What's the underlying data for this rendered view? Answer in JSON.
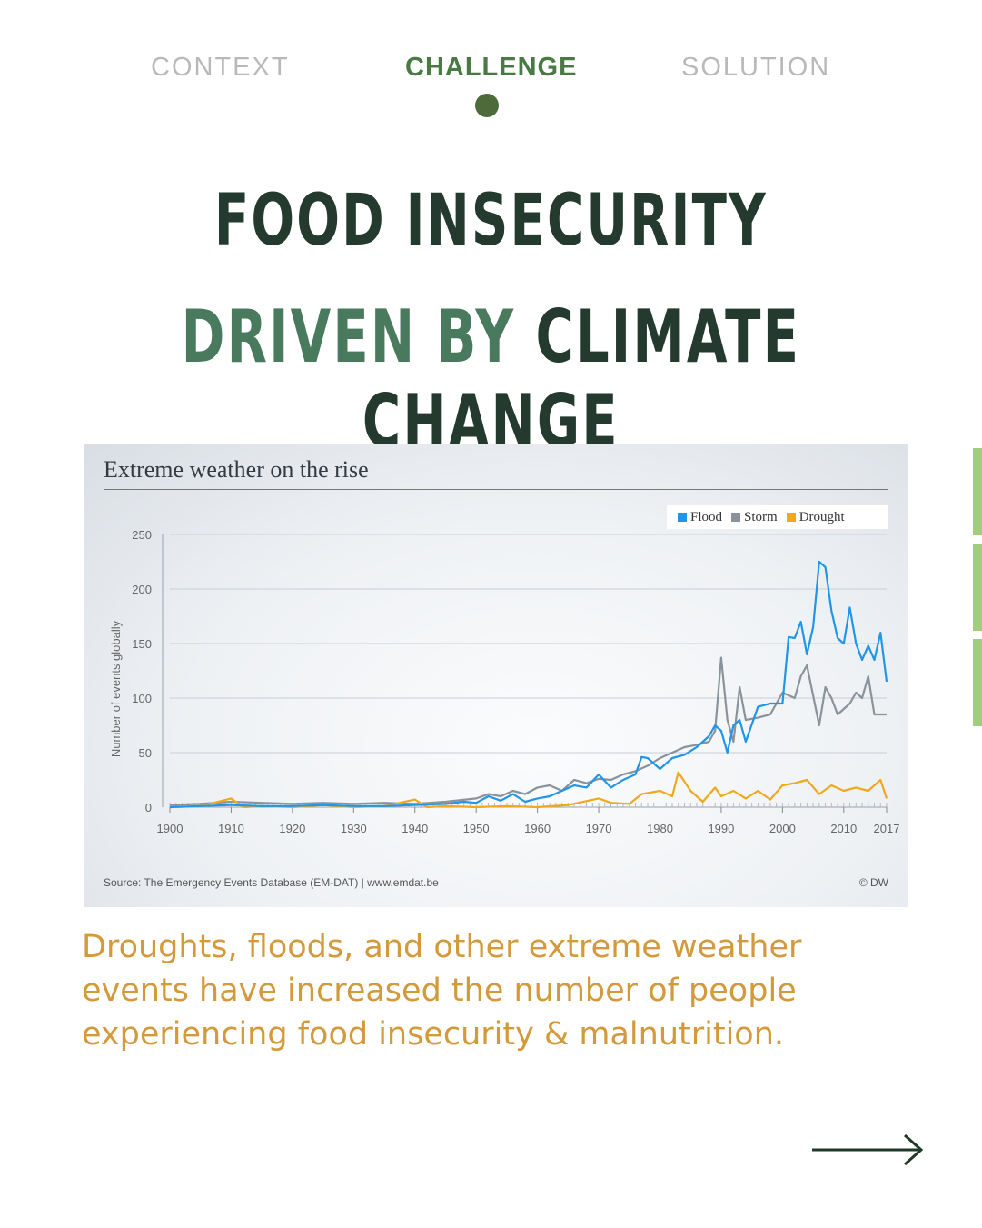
{
  "nav": {
    "tabs": [
      {
        "label": "CONTEXT",
        "active": false
      },
      {
        "label": "CHALLENGE",
        "active": true
      },
      {
        "label": "SOLUTION",
        "active": false
      }
    ]
  },
  "headline": {
    "line1": "FOOD INSECURITY",
    "line2_green": "DRIVEN BY",
    "line2_dark": "CLIMATE CHANGE"
  },
  "caption": "Droughts, floods, and other extreme weather events have increased the number of people experiencing food insecurity & malnutrition.",
  "colors": {
    "accent_green": "#4a7a44",
    "headline_dark": "#243a2e",
    "headline_green": "#4a7a5e",
    "caption_gold": "#d3993a",
    "flood": "#2196e8",
    "storm": "#8a939b",
    "drought": "#f0a81c"
  },
  "icons": {
    "next": "arrow-right-icon",
    "active": "dot-icon"
  },
  "chart_data": {
    "type": "line",
    "title": "Extreme weather on the rise",
    "xlabel": "",
    "ylabel": "Number of events globally",
    "xlim": [
      1900,
      2017
    ],
    "ylim": [
      0,
      250
    ],
    "x_ticks": [
      "1900",
      "1910",
      "1920",
      "1930",
      "1940",
      "1950",
      "1960",
      "1970",
      "1980",
      "1990",
      "2000",
      "2010",
      "2017"
    ],
    "x_tick_values": [
      1900,
      1910,
      1920,
      1930,
      1940,
      1950,
      1960,
      1970,
      1980,
      1990,
      2000,
      2010,
      2017
    ],
    "y_ticks": [
      "0",
      "50",
      "100",
      "150",
      "200",
      "250"
    ],
    "y_tick_values": [
      0,
      50,
      100,
      150,
      200,
      250
    ],
    "legend": "top-right",
    "source": "Source: The Emergency Events Database (EM-DAT) | www.emdat.be",
    "credit": "© DW",
    "series": [
      {
        "name": "Flood",
        "color": "#2196e8",
        "x": [
          1900,
          1905,
          1910,
          1915,
          1920,
          1925,
          1930,
          1935,
          1940,
          1945,
          1948,
          1950,
          1952,
          1954,
          1956,
          1958,
          1960,
          1962,
          1964,
          1966,
          1968,
          1970,
          1972,
          1974,
          1976,
          1977,
          1978,
          1980,
          1982,
          1984,
          1986,
          1988,
          1989,
          1990,
          1991,
          1992,
          1993,
          1994,
          1996,
          1998,
          2000,
          2001,
          2002,
          2003,
          2004,
          2005,
          2006,
          2007,
          2008,
          2009,
          2010,
          2011,
          2012,
          2013,
          2014,
          2015,
          2016,
          2017
        ],
        "y": [
          0,
          1,
          2,
          1,
          1,
          2,
          1,
          1,
          2,
          3,
          5,
          4,
          10,
          6,
          12,
          5,
          8,
          10,
          15,
          20,
          18,
          30,
          18,
          25,
          30,
          46,
          45,
          35,
          45,
          48,
          55,
          65,
          75,
          70,
          50,
          75,
          80,
          60,
          92,
          95,
          95,
          156,
          155,
          170,
          140,
          165,
          225,
          220,
          180,
          155,
          150,
          183,
          150,
          135,
          148,
          135,
          160,
          115
        ]
      },
      {
        "name": "Storm",
        "color": "#8a939b",
        "x": [
          1900,
          1905,
          1910,
          1915,
          1920,
          1925,
          1930,
          1935,
          1940,
          1945,
          1950,
          1952,
          1954,
          1956,
          1958,
          1960,
          1962,
          1964,
          1966,
          1968,
          1970,
          1972,
          1974,
          1976,
          1978,
          1980,
          1982,
          1984,
          1986,
          1988,
          1989,
          1990,
          1991,
          1992,
          1993,
          1994,
          1996,
          1998,
          2000,
          2002,
          2003,
          2004,
          2006,
          2007,
          2008,
          2009,
          2010,
          2011,
          2012,
          2013,
          2014,
          2015,
          2016,
          2017
        ],
        "y": [
          2,
          3,
          5,
          4,
          3,
          4,
          3,
          4,
          3,
          5,
          8,
          12,
          10,
          15,
          12,
          18,
          20,
          15,
          25,
          22,
          26,
          25,
          30,
          33,
          38,
          45,
          50,
          55,
          57,
          60,
          70,
          137,
          80,
          60,
          110,
          80,
          82,
          85,
          105,
          100,
          120,
          130,
          75,
          110,
          100,
          85,
          90,
          95,
          105,
          100,
          120,
          85,
          85,
          85
        ]
      },
      {
        "name": "Drought",
        "color": "#f0a81c",
        "x": [
          1900,
          1905,
          1910,
          1912,
          1915,
          1920,
          1925,
          1930,
          1935,
          1940,
          1942,
          1945,
          1950,
          1955,
          1960,
          1965,
          1970,
          1972,
          1975,
          1977,
          1980,
          1982,
          1983,
          1985,
          1987,
          1989,
          1990,
          1992,
          1994,
          1996,
          1998,
          2000,
          2002,
          2004,
          2006,
          2008,
          2010,
          2012,
          2014,
          2016,
          2017
        ],
        "y": [
          0,
          1,
          8,
          0,
          1,
          0,
          2,
          0,
          1,
          7,
          0,
          1,
          0,
          1,
          0,
          2,
          8,
          4,
          3,
          12,
          15,
          10,
          32,
          15,
          5,
          18,
          10,
          15,
          8,
          15,
          7,
          20,
          22,
          25,
          12,
          20,
          15,
          18,
          15,
          25,
          8
        ]
      }
    ]
  }
}
